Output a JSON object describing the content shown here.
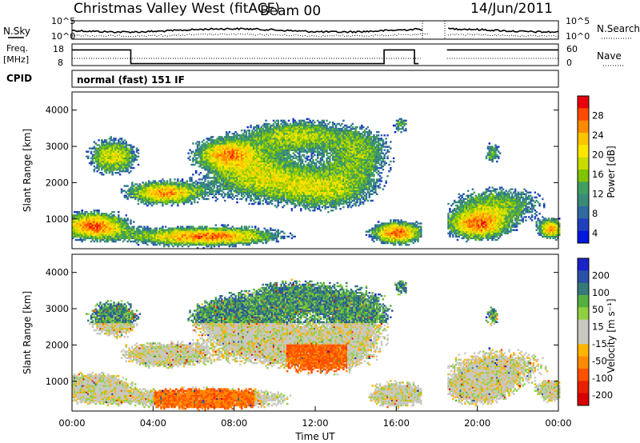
{
  "header": {
    "station": "Christmas Valley West (fitACF)",
    "beam": "Beam 00",
    "date": "14/Jun/2011",
    "mode": "normal (fast) 151 IF"
  },
  "panels": {
    "nsky": {
      "label": "N.Sky",
      "left_ticks": [
        "10^5",
        "10^0"
      ],
      "right_ticks": [
        "10^5",
        "10^0"
      ],
      "right_label": "N.Search"
    },
    "freq": {
      "label_line1": "Freq.",
      "label_line2": "[MHz]",
      "left_ticks": [
        "18",
        "8"
      ],
      "right_ticks": [
        "60",
        "0"
      ],
      "right_label": "Nave"
    },
    "cpid": {
      "label": "CPID"
    }
  },
  "chart_data": [
    {
      "type": "heatmap",
      "name": "power",
      "xlabel": "",
      "ylabel": "Slant Range [km]",
      "xlim": [
        0,
        24
      ],
      "ylim": [
        180,
        4500
      ],
      "y_ticks": [
        "1000",
        "2000",
        "3000",
        "4000"
      ],
      "colorbar": {
        "label": "Power [dB]",
        "ticks": [
          "28",
          "24",
          "20",
          "16",
          "12",
          "8",
          "4"
        ],
        "colors": [
          "#e8000b",
          "#ff4a00",
          "#ff8a00",
          "#ffc400",
          "#ffe600",
          "#c8dc00",
          "#7fc400",
          "#3fa060",
          "#3a8a78",
          "#2f6aa0",
          "#2040c0",
          "#0018e0"
        ]
      },
      "data_gaps_utc": [
        [
          17.2,
          18.5
        ]
      ],
      "description_points": [
        {
          "t": 1.0,
          "range": 800,
          "power": 28
        },
        {
          "t": 4.5,
          "range": 1700,
          "power": 24
        },
        {
          "t": 6.0,
          "range": 500,
          "power": 26
        },
        {
          "t": 7.5,
          "range": 2900,
          "power": 20
        },
        {
          "t": 9.5,
          "range": 2300,
          "power": 16
        },
        {
          "t": 12.0,
          "range": 3300,
          "power": 10
        },
        {
          "t": 16.0,
          "range": 600,
          "power": 26
        },
        {
          "t": 20.0,
          "range": 800,
          "power": 26
        },
        {
          "t": 23.8,
          "range": 700,
          "power": 28
        }
      ]
    },
    {
      "type": "heatmap",
      "name": "velocity",
      "xlabel": "Time UT",
      "ylabel": "Slant Range [km]",
      "xlim": [
        0,
        24
      ],
      "ylim": [
        180,
        4500
      ],
      "x_ticks": [
        "00:00",
        "04:00",
        "08:00",
        "12:00",
        "16:00",
        "20:00",
        "00:00"
      ],
      "y_ticks": [
        "1000",
        "2000",
        "3000",
        "4000"
      ],
      "colorbar": {
        "label": "Velocity [m s⁻¹]",
        "ticks": [
          "200",
          "100",
          "50",
          "15",
          "-15",
          "-50",
          "-100",
          "-200"
        ],
        "colors": [
          "#1a22c8",
          "#2a50a8",
          "#357a78",
          "#55b040",
          "#90d040",
          "#c8c8c0",
          "#c8c8c0",
          "#ffb400",
          "#ff8a00",
          "#ff5000",
          "#e82000",
          "#d80000"
        ]
      },
      "data_gaps_utc": [
        [
          17.2,
          18.5
        ]
      ],
      "description_points": [
        {
          "t": 1.0,
          "range": 700,
          "velocity": 0
        },
        {
          "t": 9.5,
          "range": 3200,
          "velocity": 40
        },
        {
          "t": 11.5,
          "range": 1500,
          "velocity": -60
        },
        {
          "t": 6.0,
          "range": 400,
          "velocity": -70
        },
        {
          "t": 20.5,
          "range": 700,
          "velocity": 0
        }
      ]
    }
  ],
  "colors": {
    "frame": "#000000",
    "background": "#ffffff"
  }
}
